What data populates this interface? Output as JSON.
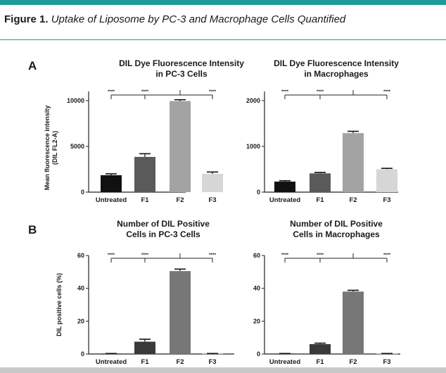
{
  "caption": {
    "label": "Figure 1.",
    "title": "Uptake of Liposome by PC-3 and Macrophage Cells Quantified"
  },
  "colors": {
    "accent": "#1b9a96",
    "bar_colors": [
      "#111111",
      "#5a5a5a",
      "#a3a3a3",
      "#d6d6d6"
    ],
    "bar_colors_B": [
      "#111111",
      "#3a3a3a",
      "#777777",
      "#bdbdbd"
    ]
  },
  "panels": {
    "A": "A",
    "B": "B"
  },
  "y_axis_labels": {
    "A_line1": "Mean fluorescence intensity",
    "A_line2": "(DIL FL2-A)",
    "B": "DIL positive cells (%)"
  },
  "chart_data": [
    {
      "type": "bar",
      "panel": "A",
      "title_line1": "DIL Dye Fluorescence Intensity",
      "title_line2": "in PC-3 Cells",
      "categories": [
        "Untreated",
        "F1",
        "F2",
        "F3"
      ],
      "values": [
        1850,
        3850,
        9950,
        2000
      ],
      "errors": [
        150,
        350,
        150,
        200
      ],
      "ylim": [
        0,
        11000
      ],
      "yticks": [
        0,
        5000,
        10000
      ],
      "significance": [
        "****",
        "****",
        "****"
      ]
    },
    {
      "type": "bar",
      "panel": "A",
      "title_line1": "DIL Dye Fluorescence Intensity",
      "title_line2": "in Macrophages",
      "categories": [
        "Untreated",
        "F1",
        "F2",
        "F3"
      ],
      "values": [
        230,
        410,
        1290,
        500
      ],
      "errors": [
        20,
        20,
        40,
        20
      ],
      "ylim": [
        0,
        2200
      ],
      "yticks": [
        0,
        1000,
        2000
      ],
      "significance": [
        "****",
        "****",
        "****"
      ]
    },
    {
      "type": "bar",
      "panel": "B",
      "title_line1": "Number of DIL Positive",
      "title_line2": "Cells in PC-3 Cells",
      "categories": [
        "Untreated",
        "F1",
        "F2",
        "F3"
      ],
      "values": [
        0.2,
        7.5,
        50.5,
        0.2
      ],
      "errors": [
        0.1,
        1.5,
        1.2,
        0.1
      ],
      "ylim": [
        0,
        60
      ],
      "yticks": [
        0,
        20,
        40,
        60
      ],
      "significance": [
        "****",
        "****",
        "****"
      ]
    },
    {
      "type": "bar",
      "panel": "B",
      "title_line1": "Number of DIL Positive",
      "title_line2": "Cells in Macrophages",
      "categories": [
        "Untreated",
        "F1",
        "F2",
        "F3"
      ],
      "values": [
        0.2,
        6.0,
        38.0,
        0.2
      ],
      "errors": [
        0.1,
        0.6,
        0.8,
        0.1
      ],
      "ylim": [
        0,
        60
      ],
      "yticks": [
        0,
        20,
        40,
        60
      ],
      "significance": [
        "****",
        "****",
        "****"
      ]
    }
  ]
}
